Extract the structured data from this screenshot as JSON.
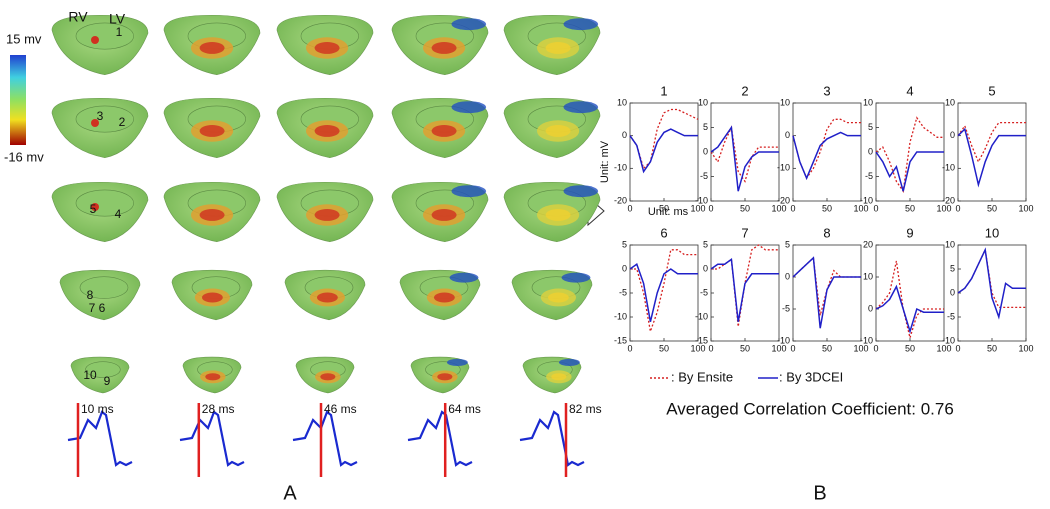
{
  "panel_a": {
    "colorbar_max": "15 mv",
    "colorbar_min": "-16 mv",
    "heart_labels": [
      "RV",
      "LV",
      "1",
      "3",
      "2",
      "5",
      "4",
      "8",
      "7",
      "6",
      "10",
      "9"
    ],
    "times": [
      "10 ms",
      "28 ms",
      "46 ms",
      "64 ms",
      "82 ms"
    ],
    "label": "A"
  },
  "panel_b": {
    "y_label": "Unit: mV",
    "x_label": "Unit: ms",
    "legend": [
      {
        "name": ": By Ensite",
        "color": "#d62020",
        "dash": true
      },
      {
        "name": ": By 3DCEI",
        "color": "#2020c8",
        "dash": false
      }
    ],
    "summary": "Averaged Correlation Coefficient: 0.76",
    "label": "B"
  },
  "chart_data": [
    {
      "type": "line",
      "title": "1",
      "x": [
        0,
        10,
        20,
        30,
        40,
        50,
        60,
        70,
        80,
        90,
        100
      ],
      "xlim": [
        0,
        100
      ],
      "xticks": [
        0,
        50,
        100
      ],
      "ylim": [
        -20,
        10
      ],
      "yticks": [
        -20,
        -10,
        0,
        10
      ],
      "series": [
        {
          "color": "#d62020",
          "values": [
            0,
            -3,
            -10,
            -8,
            2,
            7,
            8,
            8,
            7,
            6,
            5
          ]
        },
        {
          "color": "#2020c8",
          "values": [
            0,
            -3,
            -11,
            -8,
            -2,
            1,
            2,
            1,
            0,
            0,
            0
          ]
        }
      ]
    },
    {
      "type": "line",
      "title": "2",
      "x": [
        0,
        10,
        20,
        30,
        40,
        50,
        60,
        70,
        80,
        90,
        100
      ],
      "xlim": [
        0,
        100
      ],
      "xticks": [
        0,
        50,
        100
      ],
      "ylim": [
        -10,
        10
      ],
      "yticks": [
        -10,
        -5,
        0,
        5,
        10
      ],
      "series": [
        {
          "color": "#d62020",
          "values": [
            0,
            -2,
            2,
            5,
            -4,
            -6,
            -1,
            1,
            1,
            1,
            1
          ]
        },
        {
          "color": "#2020c8",
          "values": [
            0,
            1,
            3,
            5,
            -8,
            -3,
            -1,
            0,
            0,
            0,
            0
          ]
        }
      ]
    },
    {
      "type": "line",
      "title": "3",
      "x": [
        0,
        10,
        20,
        30,
        40,
        50,
        60,
        70,
        80,
        90,
        100
      ],
      "xlim": [
        0,
        100
      ],
      "xticks": [
        0,
        50,
        100
      ],
      "ylim": [
        -20,
        10
      ],
      "yticks": [
        -20,
        -10,
        0,
        10
      ],
      "series": [
        {
          "color": "#d62020",
          "values": [
            0,
            -8,
            -13,
            -10,
            -5,
            2,
            5,
            5,
            4,
            4,
            4
          ]
        },
        {
          "color": "#2020c8",
          "values": [
            0,
            -8,
            -13,
            -8,
            -3,
            -1,
            0,
            1,
            0,
            0,
            0
          ]
        }
      ]
    },
    {
      "type": "line",
      "title": "4",
      "x": [
        0,
        10,
        20,
        30,
        40,
        50,
        60,
        70,
        80,
        90,
        100
      ],
      "xlim": [
        0,
        100
      ],
      "xticks": [
        0,
        50,
        100
      ],
      "ylim": [
        -10,
        10
      ],
      "yticks": [
        -10,
        -5,
        0,
        5,
        10
      ],
      "series": [
        {
          "color": "#d62020",
          "values": [
            0,
            1,
            -2,
            -6,
            -8,
            2,
            7,
            5,
            4,
            3,
            3
          ]
        },
        {
          "color": "#2020c8",
          "values": [
            0,
            -2,
            -5,
            -3,
            -8,
            -2,
            0,
            0,
            0,
            0,
            0
          ]
        }
      ]
    },
    {
      "type": "line",
      "title": "5",
      "x": [
        0,
        10,
        20,
        30,
        40,
        50,
        60,
        70,
        80,
        90,
        100
      ],
      "xlim": [
        0,
        100
      ],
      "xticks": [
        0,
        50,
        100
      ],
      "ylim": [
        -20,
        10
      ],
      "yticks": [
        -20,
        -10,
        0,
        10
      ],
      "series": [
        {
          "color": "#d62020",
          "values": [
            0,
            3,
            -3,
            -8,
            -4,
            1,
            4,
            4,
            4,
            4,
            4
          ]
        },
        {
          "color": "#2020c8",
          "values": [
            0,
            2,
            -6,
            -15,
            -8,
            -3,
            0,
            0,
            0,
            0,
            0
          ]
        }
      ]
    },
    {
      "type": "line",
      "title": "6",
      "x": [
        0,
        10,
        20,
        30,
        40,
        50,
        60,
        70,
        80,
        90,
        100
      ],
      "xlim": [
        0,
        100
      ],
      "xticks": [
        0,
        50,
        100
      ],
      "ylim": [
        -15,
        5
      ],
      "yticks": [
        -15,
        -10,
        -5,
        0,
        5
      ],
      "series": [
        {
          "color": "#d62020",
          "values": [
            0,
            0,
            -5,
            -13,
            -9,
            -3,
            4,
            4,
            3,
            3,
            3
          ]
        },
        {
          "color": "#2020c8",
          "values": [
            0,
            1,
            -3,
            -11,
            -5,
            -1,
            0,
            -1,
            -1,
            -1,
            -1
          ]
        }
      ]
    },
    {
      "type": "line",
      "title": "7",
      "x": [
        0,
        10,
        20,
        30,
        40,
        50,
        60,
        70,
        80,
        90,
        100
      ],
      "xlim": [
        0,
        100
      ],
      "xticks": [
        0,
        50,
        100
      ],
      "ylim": [
        -15,
        5
      ],
      "yticks": [
        -15,
        -10,
        -5,
        0,
        5
      ],
      "series": [
        {
          "color": "#d62020",
          "values": [
            0,
            0,
            1,
            2,
            -12,
            -3,
            4,
            5,
            4,
            4,
            4
          ]
        },
        {
          "color": "#2020c8",
          "values": [
            0,
            1,
            1,
            2,
            -11,
            -3,
            -1,
            -1,
            -1,
            -1,
            -1
          ]
        }
      ]
    },
    {
      "type": "line",
      "title": "8",
      "x": [
        0,
        10,
        20,
        30,
        40,
        50,
        60,
        70,
        80,
        90,
        100
      ],
      "xlim": [
        0,
        100
      ],
      "xticks": [
        0,
        50,
        100
      ],
      "ylim": [
        -10,
        5
      ],
      "yticks": [
        -10,
        -5,
        0,
        5
      ],
      "series": [
        {
          "color": "#d62020",
          "values": [
            0,
            1,
            2,
            3,
            -6,
            -2,
            1,
            0,
            0,
            0,
            0
          ]
        },
        {
          "color": "#2020c8",
          "values": [
            0,
            1,
            2,
            3,
            -8,
            -2,
            0,
            0,
            0,
            0,
            0
          ]
        }
      ]
    },
    {
      "type": "line",
      "title": "9",
      "x": [
        0,
        10,
        20,
        30,
        40,
        50,
        60,
        70,
        80,
        90,
        100
      ],
      "xlim": [
        0,
        100
      ],
      "xticks": [
        0,
        50,
        100
      ],
      "ylim": [
        -10,
        20
      ],
      "yticks": [
        -10,
        0,
        10,
        20
      ],
      "series": [
        {
          "color": "#d62020",
          "values": [
            0,
            2,
            5,
            15,
            0,
            -9,
            -2,
            0,
            0,
            0,
            0
          ]
        },
        {
          "color": "#2020c8",
          "values": [
            0,
            1,
            3,
            7,
            0,
            -7,
            0,
            -1,
            -1,
            -1,
            -1
          ]
        }
      ]
    },
    {
      "type": "line",
      "title": "10",
      "x": [
        0,
        10,
        20,
        30,
        40,
        50,
        60,
        70,
        80,
        90,
        100
      ],
      "xlim": [
        0,
        100
      ],
      "xticks": [
        0,
        50,
        100
      ],
      "ylim": [
        -10,
        10
      ],
      "yticks": [
        -10,
        -5,
        0,
        5,
        10
      ],
      "series": [
        {
          "color": "#d62020",
          "values": [
            0,
            1,
            3,
            6,
            9,
            0,
            -3,
            -3,
            -3,
            -3,
            -3
          ]
        },
        {
          "color": "#2020c8",
          "values": [
            0,
            1,
            3,
            6,
            9,
            -1,
            -5,
            2,
            1,
            1,
            1
          ]
        }
      ]
    }
  ]
}
